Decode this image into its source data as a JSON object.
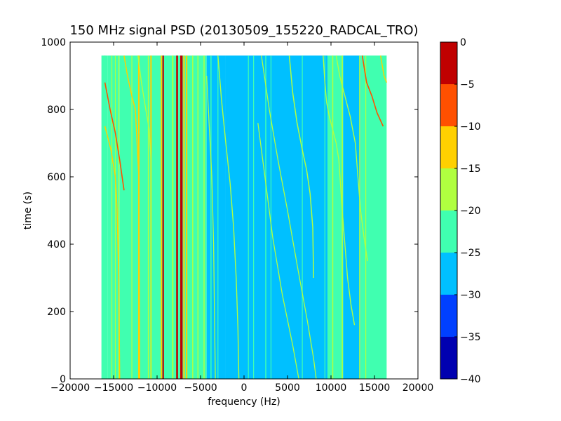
{
  "chart_data": {
    "type": "heatmap",
    "title": "150 MHz signal PSD (20130509_155220_RADCAL_TRO)",
    "xlabel": "frequency (Hz)",
    "ylabel": "time (s)",
    "xlim": [
      -20000,
      20000
    ],
    "ylim": [
      0,
      1000
    ],
    "xticks": [
      -20000,
      -15000,
      -10000,
      -5000,
      0,
      5000,
      10000,
      15000,
      20000
    ],
    "xtick_labels": [
      "−20000",
      "−15000",
      "−10000",
      "−5000",
      "0",
      "5000",
      "10000",
      "15000",
      "20000"
    ],
    "yticks": [
      0,
      200,
      400,
      600,
      800,
      1000
    ],
    "ytick_labels": [
      "0",
      "200",
      "400",
      "600",
      "800",
      "1000"
    ],
    "data_extent": {
      "freq_min": -16400,
      "freq_max": 16400,
      "time_min": 0,
      "time_max": 960
    },
    "colorbar": {
      "levels": [
        -40,
        -35,
        -30,
        -25,
        -20,
        -15,
        -10,
        -5,
        0
      ],
      "tick_labels": [
        "−40",
        "−35",
        "−30",
        "−25",
        "−20",
        "−15",
        "−10",
        "−5",
        "0"
      ],
      "colors": [
        "#0000b0",
        "#0040ff",
        "#00c0ff",
        "#40ffb0",
        "#b0ff40",
        "#ffd000",
        "#ff5000",
        "#c00000"
      ]
    },
    "band_levels": [
      {
        "f0": -16400,
        "f1": -15700,
        "level": -22
      },
      {
        "f0": -15700,
        "f1": -14300,
        "level": -22
      },
      {
        "f0": -14300,
        "f1": -12500,
        "level": -22
      },
      {
        "f0": -12500,
        "f1": -9500,
        "level": -22
      },
      {
        "f0": -9500,
        "f1": -8200,
        "level": -22
      },
      {
        "f0": -8200,
        "f1": -6600,
        "level": -22
      },
      {
        "f0": -6600,
        "f1": -4300,
        "level": -22
      },
      {
        "f0": -4300,
        "f1": -2100,
        "level": -27
      },
      {
        "f0": -2100,
        "f1": 9600,
        "level": -27
      },
      {
        "f0": 9600,
        "f1": 11400,
        "level": -22
      },
      {
        "f0": 11400,
        "f1": 13400,
        "level": -27
      },
      {
        "f0": 13400,
        "f1": 16400,
        "level": -22
      }
    ],
    "vertical_lines": [
      {
        "f": -16000,
        "t0": 0,
        "t1": 960,
        "level": -22,
        "width": 1.5
      },
      {
        "f": -15200,
        "t0": 0,
        "t1": 960,
        "level": -17,
        "width": 1.2
      },
      {
        "f": -14800,
        "t0": 0,
        "t1": 960,
        "level": -17,
        "width": 1.2
      },
      {
        "f": -14400,
        "t0": 0,
        "t1": 960,
        "level": -17,
        "width": 1.5
      },
      {
        "f": -12900,
        "t0": 0,
        "t1": 960,
        "level": -17,
        "width": 1.2
      },
      {
        "f": -12100,
        "t0": 0,
        "t1": 960,
        "level": -12,
        "width": 2.0
      },
      {
        "f": -11000,
        "t0": 0,
        "t1": 960,
        "level": -17,
        "width": 1.5
      },
      {
        "f": -10700,
        "t0": 0,
        "t1": 960,
        "level": -12,
        "width": 2.0
      },
      {
        "f": -9500,
        "t0": 0,
        "t1": 960,
        "level": -12,
        "width": 1.8
      },
      {
        "f": -9300,
        "t0": 0,
        "t1": 960,
        "level": -2,
        "width": 2.2
      },
      {
        "f": -8200,
        "t0": 0,
        "t1": 960,
        "level": -17,
        "width": 2.0
      },
      {
        "f": -7700,
        "t0": 0,
        "t1": 960,
        "level": -2,
        "width": 2.6
      },
      {
        "f": -7200,
        "t0": 0,
        "t1": 960,
        "level": -2,
        "width": 3.4
      },
      {
        "f": -6900,
        "t0": 0,
        "t1": 960,
        "level": -12,
        "width": 2.0
      },
      {
        "f": -6600,
        "t0": 0,
        "t1": 960,
        "level": -12,
        "width": 2.0
      },
      {
        "f": -5900,
        "t0": 0,
        "t1": 960,
        "level": -17,
        "width": 1.5
      },
      {
        "f": -5300,
        "t0": 0,
        "t1": 960,
        "level": -17,
        "width": 1.5
      },
      {
        "f": -4600,
        "t0": 0,
        "t1": 960,
        "level": -17,
        "width": 1.5
      },
      {
        "f": -3800,
        "t0": 0,
        "t1": 960,
        "level": -22,
        "width": 1.5
      },
      {
        "f": -3000,
        "t0": 0,
        "t1": 960,
        "level": -22,
        "width": 1.2
      },
      {
        "f": 500,
        "t0": 0,
        "t1": 960,
        "level": -22,
        "width": 1.2
      },
      {
        "f": 1100,
        "t0": 0,
        "t1": 960,
        "level": -22,
        "width": 1.2
      },
      {
        "f": 2500,
        "t0": 0,
        "t1": 960,
        "level": -22,
        "width": 1.5
      },
      {
        "f": 3100,
        "t0": 0,
        "t1": 960,
        "level": -22,
        "width": 1.2
      },
      {
        "f": 6700,
        "t0": 0,
        "t1": 960,
        "level": -22,
        "width": 1.2
      },
      {
        "f": 9300,
        "t0": 0,
        "t1": 960,
        "level": -22,
        "width": 1.2
      },
      {
        "f": 10200,
        "t0": 0,
        "t1": 960,
        "level": -17,
        "width": 1.5
      },
      {
        "f": 11300,
        "t0": 0,
        "t1": 960,
        "level": -17,
        "width": 1.5
      },
      {
        "f": 13300,
        "t0": 0,
        "t1": 960,
        "level": -17,
        "width": 1.5
      },
      {
        "f": 14000,
        "t0": 0,
        "t1": 960,
        "level": -17,
        "width": 1.2
      }
    ],
    "tracks": [
      {
        "points": [
          [
            -16000,
            880
          ],
          [
            -15400,
            800
          ],
          [
            -14800,
            730
          ],
          [
            -14300,
            650
          ],
          [
            -13800,
            560
          ]
        ],
        "level": -7,
        "width": 1.6
      },
      {
        "points": [
          [
            -16000,
            750
          ],
          [
            -15300,
            680
          ],
          [
            -14800,
            600
          ],
          [
            -14600,
            500
          ],
          [
            -14400,
            300
          ],
          [
            -14300,
            0
          ]
        ],
        "level": -12,
        "width": 1.5
      },
      {
        "points": [
          [
            -13800,
            960
          ],
          [
            -13400,
            900
          ],
          [
            -12900,
            840
          ],
          [
            -12500,
            800
          ],
          [
            -12300,
            700
          ],
          [
            -12100,
            600
          ],
          [
            -12000,
            0
          ]
        ],
        "level": -12,
        "width": 1.5
      },
      {
        "points": [
          [
            -12200,
            960
          ],
          [
            -11800,
            880
          ],
          [
            -11300,
            800
          ],
          [
            -10900,
            740
          ],
          [
            -10700,
            650
          ],
          [
            -10700,
            0
          ]
        ],
        "level": -17,
        "width": 1.4
      },
      {
        "points": [
          [
            -3000,
            960
          ],
          [
            -2600,
            830
          ],
          [
            -2100,
            700
          ],
          [
            -1600,
            580
          ],
          [
            -1200,
            450
          ],
          [
            -900,
            300
          ],
          [
            -700,
            150
          ],
          [
            -600,
            0
          ]
        ],
        "level": -17,
        "width": 1.4
      },
      {
        "points": [
          [
            -4300,
            900
          ],
          [
            -4000,
            750
          ],
          [
            -3700,
            600
          ],
          [
            -3500,
            400
          ],
          [
            -3400,
            200
          ],
          [
            -3300,
            0
          ]
        ],
        "level": -17,
        "width": 1.3
      },
      {
        "points": [
          [
            1600,
            760
          ],
          [
            2400,
            600
          ],
          [
            3300,
            420
          ],
          [
            4400,
            250
          ],
          [
            5600,
            100
          ],
          [
            6300,
            0
          ]
        ],
        "level": -17,
        "width": 1.3
      },
      {
        "points": [
          [
            2000,
            960
          ],
          [
            2900,
            800
          ],
          [
            3900,
            650
          ],
          [
            5000,
            500
          ],
          [
            6100,
            340
          ],
          [
            7300,
            170
          ],
          [
            8000,
            60
          ],
          [
            8300,
            0
          ]
        ],
        "level": -17,
        "width": 1.3
      },
      {
        "points": [
          [
            5200,
            960
          ],
          [
            5600,
            850
          ],
          [
            6100,
            760
          ],
          [
            6700,
            680
          ],
          [
            7200,
            620
          ],
          [
            7600,
            550
          ],
          [
            7900,
            450
          ],
          [
            8000,
            300
          ]
        ],
        "level": -17,
        "width": 1.5
      },
      {
        "points": [
          [
            9100,
            960
          ],
          [
            9300,
            880
          ],
          [
            9500,
            820
          ],
          [
            9800,
            780
          ],
          [
            10200,
            740
          ],
          [
            10600,
            700
          ],
          [
            10900,
            650
          ],
          [
            11300,
            500
          ],
          [
            11600,
            400
          ],
          [
            11900,
            300
          ],
          [
            12300,
            220
          ],
          [
            12700,
            160
          ]
        ],
        "level": -17,
        "width": 1.4
      },
      {
        "points": [
          [
            10600,
            960
          ],
          [
            11000,
            900
          ],
          [
            11400,
            860
          ],
          [
            11800,
            820
          ],
          [
            12200,
            780
          ],
          [
            12500,
            740
          ],
          [
            12800,
            700
          ],
          [
            13100,
            600
          ],
          [
            13400,
            500
          ],
          [
            13800,
            420
          ],
          [
            14200,
            350
          ]
        ],
        "level": -17,
        "width": 1.4
      },
      {
        "points": [
          [
            13600,
            960
          ],
          [
            14100,
            880
          ],
          [
            14700,
            840
          ],
          [
            15300,
            790
          ],
          [
            16000,
            750
          ]
        ],
        "level": -7,
        "width": 1.6
      },
      {
        "points": [
          [
            15700,
            960
          ],
          [
            16100,
            900
          ],
          [
            16400,
            880
          ]
        ],
        "level": -12,
        "width": 1.4
      }
    ]
  }
}
